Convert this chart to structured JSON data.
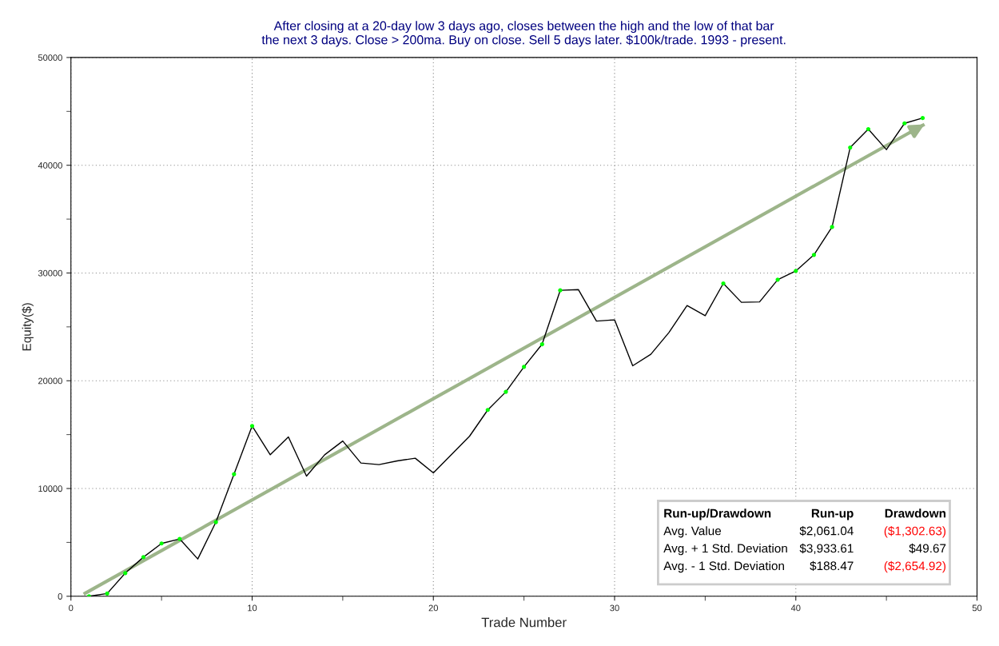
{
  "chart_data": {
    "type": "line",
    "title": "After closing at a 20-day low 3 days ago, closes between the high and the low of that bar\nthe next 3 days. Close > 200ma. Buy on close. Sell 5 days later. $100k/trade. 1993 - present.",
    "xlabel": "Trade Number",
    "ylabel": "Equity($)",
    "series": [
      {
        "type": "line",
        "color": "#000000",
        "marker": "none",
        "x": [
          1,
          2,
          3,
          4,
          5,
          6,
          7,
          8,
          9,
          10,
          11,
          12,
          13,
          14,
          15,
          16,
          17,
          18,
          19,
          20,
          21,
          22,
          23,
          24,
          25,
          26,
          27,
          28,
          29,
          30,
          31,
          32,
          33,
          34,
          35,
          36,
          37,
          38,
          39,
          40,
          41,
          42,
          43,
          44,
          45,
          46,
          47
        ],
        "values": [
          0,
          250,
          2150,
          3630,
          4900,
          5320,
          3460,
          6880,
          11330,
          15800,
          13130,
          14790,
          11150,
          13130,
          14410,
          12370,
          12220,
          12560,
          12810,
          11450,
          13150,
          14860,
          17290,
          18970,
          21290,
          23390,
          28390,
          28460,
          25540,
          25650,
          21390,
          22460,
          24480,
          26980,
          26040,
          29030,
          27280,
          27320,
          29380,
          30190,
          31680,
          34270,
          41640,
          43350,
          41450,
          43890,
          44380
        ]
      },
      {
        "type": "scatter",
        "color": "#00ff00",
        "marker": "circle",
        "x": [
          1,
          2,
          3,
          4,
          5,
          6,
          8,
          9,
          10,
          23,
          24,
          25,
          26,
          27,
          36,
          39,
          40,
          41,
          42,
          43,
          44,
          46,
          47
        ],
        "values": [
          0,
          250,
          2150,
          3630,
          4900,
          5320,
          6880,
          11330,
          15800,
          17290,
          18970,
          21290,
          23390,
          28390,
          29030,
          29380,
          30190,
          31680,
          34270,
          41640,
          43350,
          43890,
          44380
        ]
      },
      {
        "type": "line",
        "color": "#9db58a",
        "marker": "none",
        "x": [
          0.7,
          47.1
        ],
        "values": [
          200,
          43800
        ]
      }
    ],
    "xlim": [
      0,
      50
    ],
    "xticks": [
      0,
      {
        "value": 5,
        "label": null
      },
      10,
      {
        "value": 15,
        "label": null
      },
      20,
      {
        "value": 25,
        "label": null
      },
      30,
      {
        "value": 35,
        "label": null
      },
      40,
      {
        "value": 45,
        "label": null
      },
      50
    ],
    "ylim": [
      0,
      50000
    ],
    "yticks": [
      0,
      {
        "value": 5000,
        "label": null
      },
      10000,
      {
        "value": 15000,
        "label": null
      },
      20000,
      {
        "value": 25000,
        "label": null
      },
      30000,
      {
        "value": 35000,
        "label": null
      },
      40000,
      {
        "value": 45000,
        "label": null
      },
      50000
    ],
    "grid": true,
    "annotations": [
      "Run-up/Drawdown",
      "Run-up",
      "Drawdown",
      "Avg. Value",
      "$2,061.04",
      "($1,302.63)",
      "Avg. + 1 Std. Deviation",
      "$3,933.61",
      "$49.67",
      "Avg. - 1 Std. Deviation",
      "$188.47",
      "($2,654.92)"
    ]
  }
}
